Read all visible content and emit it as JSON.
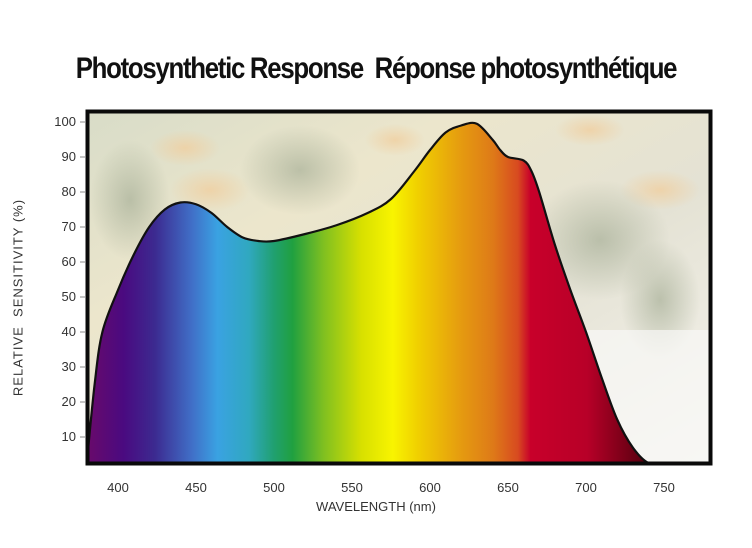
{
  "title": "Photosynthetic Response  Réponse photosynthétique",
  "chart_data": {
    "type": "area",
    "title": "Photosynthetic Response  Réponse photosynthétique",
    "xlabel": "WAVELENGTH (nm)",
    "ylabel": "RELATIVE  SENSITIVITY (%)",
    "xlim": [
      380,
      780
    ],
    "ylim": [
      0,
      103
    ],
    "x_ticks": [
      400,
      450,
      500,
      550,
      600,
      650,
      700,
      750
    ],
    "y_ticks": [
      10,
      20,
      30,
      40,
      50,
      60,
      70,
      80,
      90,
      100
    ],
    "grid": false,
    "legend": null,
    "fill": "visible-spectrum gradient",
    "series": [
      {
        "name": "Relative sensitivity",
        "x": [
          380,
          385,
          390,
          400,
          410,
          420,
          430,
          440,
          450,
          460,
          470,
          480,
          490,
          500,
          520,
          540,
          560,
          575,
          590,
          600,
          610,
          620,
          630,
          640,
          645,
          650,
          660,
          665,
          670,
          680,
          690,
          700,
          710,
          720,
          730,
          740,
          750
        ],
        "values": [
          0,
          25,
          40,
          52,
          62,
          70,
          75,
          77,
          76.5,
          74,
          70,
          67,
          66,
          66,
          68,
          70.5,
          74,
          78,
          86,
          92,
          97,
          99,
          99.5,
          95,
          92,
          90,
          89,
          86,
          80,
          65,
          52,
          40,
          27,
          15,
          7,
          2,
          0
        ]
      }
    ]
  },
  "axes": {
    "y_ticks": [
      "100",
      "90",
      "80",
      "70",
      "60",
      "50",
      "40",
      "30",
      "20",
      "10"
    ],
    "x_ticks": [
      "400",
      "450",
      "500",
      "550",
      "600",
      "650",
      "700",
      "750"
    ],
    "xlabel": "WAVELENGTH (nm)",
    "ylabel": "RELATIVE  SENSITIVITY (%)"
  },
  "colors": {
    "violet": "#4a0a7a",
    "blue": "#3aa0e0",
    "green": "#20a040",
    "yellow": "#f5f000",
    "orange": "#e08a10",
    "red": "#c8002a",
    "dark_red": "#5a0010",
    "frame": "#0a0a0a",
    "background_photo": "#e8e6d8"
  }
}
